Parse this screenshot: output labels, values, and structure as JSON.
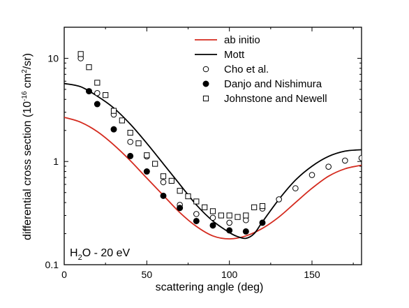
{
  "chart_data": {
    "type": "line",
    "xlabel": "scattering angle (deg)",
    "ylabel": {
      "prefix": "differential cross section (10",
      "exp1": "-16",
      "middle": " cm",
      "exp2": "2",
      "suffix": "/sr)"
    },
    "xlim": [
      0,
      180
    ],
    "ylim": [
      0.1,
      20
    ],
    "yscale": "log",
    "x_ticks": [
      0,
      50,
      100,
      150
    ],
    "y_ticks": [
      0.1,
      1,
      10
    ],
    "y_tick_labels": [
      "0.1",
      "1",
      "10"
    ],
    "annotation": {
      "base": "H",
      "sub": "2",
      "rest": "O - 20 eV"
    },
    "legend_position": "top-right",
    "series": [
      {
        "name": "ab initio",
        "style": "line",
        "color": "#d42a1e",
        "x": [
          0,
          10,
          20,
          30,
          40,
          50,
          60,
          70,
          80,
          90,
          100,
          110,
          120,
          130,
          140,
          150,
          160,
          170,
          180
        ],
        "y": [
          2.68,
          2.4,
          1.95,
          1.45,
          1.02,
          0.69,
          0.47,
          0.32,
          0.235,
          0.19,
          0.178,
          0.19,
          0.225,
          0.29,
          0.4,
          0.55,
          0.72,
          0.85,
          0.92
        ]
      },
      {
        "name": "Mott",
        "style": "line",
        "color": "#000000",
        "x": [
          0,
          10,
          20,
          30,
          40,
          50,
          60,
          70,
          80,
          90,
          100,
          105,
          110,
          115,
          120,
          130,
          140,
          150,
          160,
          170,
          180
        ],
        "y": [
          5.7,
          5.3,
          4.3,
          3.3,
          2.3,
          1.5,
          0.95,
          0.6,
          0.38,
          0.265,
          0.205,
          0.187,
          0.18,
          0.2,
          0.26,
          0.43,
          0.66,
          0.9,
          1.12,
          1.26,
          1.3
        ]
      },
      {
        "name": "Cho et al.",
        "style": "open-circle",
        "color": "#000000",
        "x": [
          10,
          20,
          30,
          40,
          50,
          60,
          70,
          80,
          90,
          100,
          110,
          120,
          130,
          140,
          150,
          160,
          170,
          180
        ],
        "y": [
          10.0,
          4.6,
          2.85,
          1.55,
          1.12,
          0.63,
          0.38,
          0.31,
          0.285,
          0.255,
          0.27,
          0.35,
          0.43,
          0.55,
          0.74,
          0.89,
          1.02,
          1.08
        ]
      },
      {
        "name": "Danjo and Nishimura",
        "style": "filled-circle",
        "color": "#000000",
        "x": [
          15,
          20,
          30,
          40,
          50,
          60,
          70,
          80,
          90,
          100,
          110,
          120
        ],
        "y": [
          4.8,
          3.6,
          2.05,
          1.13,
          0.8,
          0.465,
          0.355,
          0.265,
          0.24,
          0.215,
          0.21,
          0.255
        ]
      },
      {
        "name": "Johnstone and Newell",
        "style": "open-square",
        "color": "#000000",
        "x": [
          10,
          15,
          20,
          25,
          30,
          35,
          40,
          45,
          50,
          55,
          60,
          65,
          70,
          75,
          80,
          85,
          90,
          95,
          100,
          105,
          110,
          115,
          120
        ],
        "y": [
          11.0,
          8.2,
          5.8,
          4.4,
          3.1,
          2.5,
          1.9,
          1.5,
          1.15,
          0.95,
          0.72,
          0.65,
          0.52,
          0.46,
          0.41,
          0.36,
          0.33,
          0.3,
          0.3,
          0.29,
          0.3,
          0.36,
          0.37
        ]
      }
    ]
  }
}
